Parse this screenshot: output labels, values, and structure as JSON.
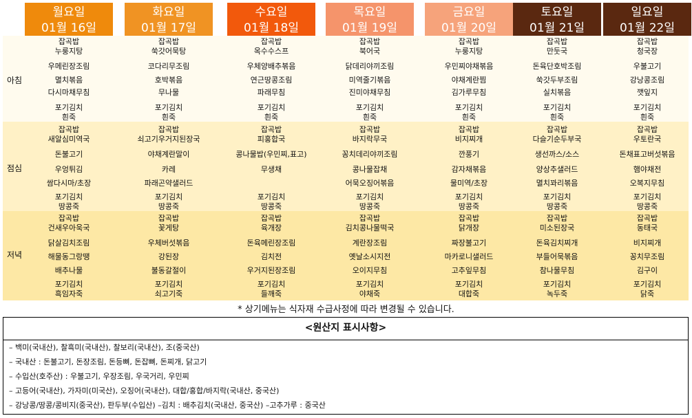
{
  "meals": [
    "아침",
    "점심",
    "저녁"
  ],
  "days": [
    {
      "day": "월요일",
      "date": "01월 16일",
      "color": "#ef8a0c",
      "breakfast": [
        "잡곡밥",
        "누룽지탕",
        "우메린장조림",
        "멸치볶음",
        "다시마채무침",
        "포기김치",
        "흰죽"
      ],
      "lunch": [
        "잡곡밥",
        "새알심미역국",
        "돈불고기",
        "우엉튀김",
        "쌈다시마/초장",
        "포기김치",
        "땅콩죽"
      ],
      "dinner": [
        "잡곡밥",
        "건새우아욱국",
        "닭살김치조림",
        "해물동그랑땡",
        "배추나물",
        "포기김치",
        "흑임자죽"
      ]
    },
    {
      "day": "화요일",
      "date": "01월 17일",
      "color": "#f09323",
      "breakfast": [
        "잡곡밥",
        "쑥갓어묵탕",
        "코다리무조림",
        "호박볶음",
        "무나물",
        "포기김치",
        "흰죽"
      ],
      "lunch": [
        "잡곡밥",
        "쇠고기우거지된장국",
        "야채계란말이",
        "카레",
        "파래곤약샐러드",
        "포기김치",
        "땅콩죽"
      ],
      "dinner": [
        "잡곡밥",
        "꽃게탕",
        "우체버섯볶음",
        "강된장",
        "불동갈절이",
        "포기김치",
        "쇠고기죽"
      ]
    },
    {
      "day": "수요일",
      "date": "01월 18일",
      "color": "#f2590c",
      "breakfast": [
        "잡곡밥",
        "옥수수스프",
        "우체양배추볶음",
        "연근땅콩조림",
        "파래무침",
        "포기김치",
        "흰죽"
      ],
      "lunch": [
        "잡곡밥",
        "피홍합국",
        "콩나물밥(우민찌,표고)",
        "무생채",
        "",
        "포기김치",
        "땅콩죽"
      ],
      "dinner": [
        "잡곡밥",
        "육개장",
        "돈육메린장조림",
        "김치전",
        "우거지된장조림",
        "포기김치",
        "들깨죽"
      ]
    },
    {
      "day": "목요일",
      "date": "01월 19일",
      "color": "#f5946b",
      "breakfast": [
        "잡곡밥",
        "북어국",
        "닭데리야끼조림",
        "미역줄기볶음",
        "진미야채무침",
        "포기김치",
        "흰죽"
      ],
      "lunch": [
        "잡곡밥",
        "바지락무국",
        "꽁치데리야끼조림",
        "콩나물잡채",
        "어묵오징어볶음",
        "포기김치",
        "땅콩죽"
      ],
      "dinner": [
        "잡곡밥",
        "김치콩나물떡국",
        "계란장조림",
        "옛날소시지전",
        "오이지무침",
        "포기김치",
        "야채죽"
      ]
    },
    {
      "day": "금요일",
      "date": "01월 20일",
      "color": "#f6a37b",
      "breakfast": [
        "잡곡밥",
        "누룽지탕",
        "우민찌야채볶음",
        "야채계란찜",
        "김가루무침",
        "포기김치",
        "흰죽"
      ],
      "lunch": [
        "잡곡밥",
        "비지찌개",
        "깐풍기",
        "감자채볶음",
        "물미역/초장",
        "포기김치",
        "땅콩죽"
      ],
      "dinner": [
        "잡곡밥",
        "닭개장",
        "짜장불고기",
        "마카로니샐러드",
        "고추잎무침",
        "포기김치",
        "대합죽"
      ]
    },
    {
      "day": "토요일",
      "date": "01월 21일",
      "color": "#5a2810",
      "breakfast": [
        "잡곡밥",
        "만둣국",
        "돈육단호박조림",
        "쑥갓두부조림",
        "실치볶음",
        "포기김치",
        "흰죽"
      ],
      "lunch": [
        "잡곡밥",
        "다슬기순두부국",
        "생선까스/소스",
        "양상추샐러드",
        "멸치꽈리볶음",
        "포기김치",
        "땅콩죽"
      ],
      "dinner": [
        "잡곡밥",
        "미소된장국",
        "돈육김치찌개",
        "부들어묵볶음",
        "참나물무침",
        "포기김치",
        "녹두죽"
      ]
    },
    {
      "day": "일요일",
      "date": "01월 22일",
      "color": "#5a2810",
      "breakfast": [
        "잡곡밥",
        "청국장",
        "우불고기",
        "강낭콩조림",
        "깻잎지",
        "포기김치",
        "흰죽"
      ],
      "lunch": [
        "잡곡밥",
        "우토란국",
        "돈채표고버섯볶음",
        "햄야채전",
        "오복지무침",
        "포기김치",
        "땅콩죽"
      ],
      "dinner": [
        "잡곡밥",
        "동태국",
        "비지찌개",
        "꽁치무조림",
        "김구이",
        "포기김치",
        "닭죽"
      ]
    }
  ],
  "note": "* 상기메뉴는 식자재 수급사정에 따라 변경될 수 있습니다.",
  "origin": {
    "title": "<원산지 표시사항>",
    "lines": [
      "–  백미(국내산), 찰흑미(국내산), 찰보리(국내산), 조(중국산)",
      "–  국내산 : 돈불고기, 돈장조림, 돈등뼈, 돈잡뼈, 돈찌개, 닭고기",
      "–  수입산(호주산) : 우불고기, 우장조림, 우국거리, 우민찌",
      "–  고등어(국내산), 가자미(미국산), 오징어(국내산), 대합/홍합/바지락(국내산, 중국산)",
      "–  강낭콩/땅콩/콩비지(중국산), 판두부(수입산)    –김치 : 배추김치(국내산, 중국산)    –고추가루 : 중국산"
    ]
  }
}
